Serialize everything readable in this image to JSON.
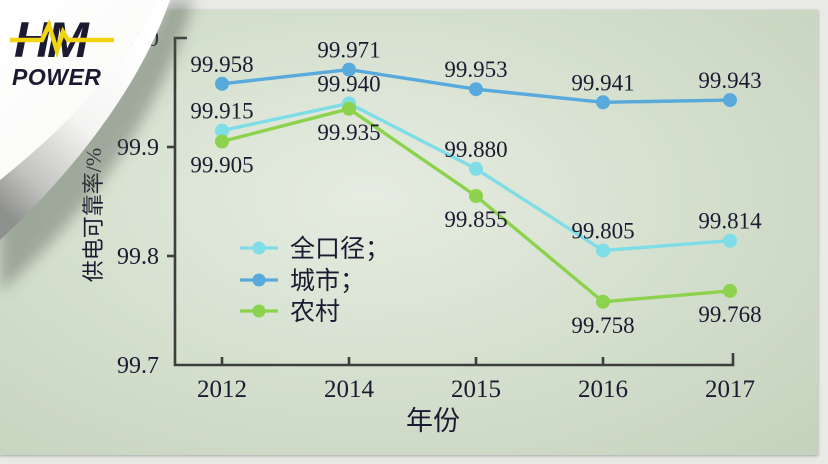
{
  "logo": {
    "line1": "HM",
    "line2": "POWER"
  },
  "colors": {
    "all": "#7edde6",
    "city": "#58a9dc",
    "rural": "#8dd24d",
    "axis": "#3d3d3d",
    "text": "#1b1a30",
    "logo_navy": "#1c3e96",
    "logo_yellow": "#f2d512",
    "slide_bg": "#d6e1d0"
  },
  "chart_data": {
    "type": "line",
    "title": "",
    "xlabel": "年份",
    "ylabel": "供电可靠率/%",
    "categories": [
      "2012",
      "2014",
      "2015",
      "2016",
      "2017"
    ],
    "ylim": [
      99.7,
      100.0
    ],
    "yticks": [
      {
        "label": "100.0",
        "value": 100.0
      },
      {
        "label": "99.9",
        "value": 99.9
      },
      {
        "label": "99.8",
        "value": 99.8
      },
      {
        "label": "99.7",
        "value": 99.7
      }
    ],
    "grid": false,
    "legend_position": "center-left",
    "series": [
      {
        "key": "all",
        "name": "全口径；",
        "label_position": "above",
        "values": [
          99.915,
          99.94,
          99.88,
          99.805,
          99.814
        ]
      },
      {
        "key": "city",
        "name": "城市；",
        "label_position": "above",
        "values": [
          99.958,
          99.971,
          99.953,
          99.941,
          99.943
        ]
      },
      {
        "key": "rural",
        "name": "农村",
        "label_position": "below",
        "values": [
          99.905,
          99.935,
          99.855,
          99.758,
          99.768
        ]
      }
    ]
  }
}
